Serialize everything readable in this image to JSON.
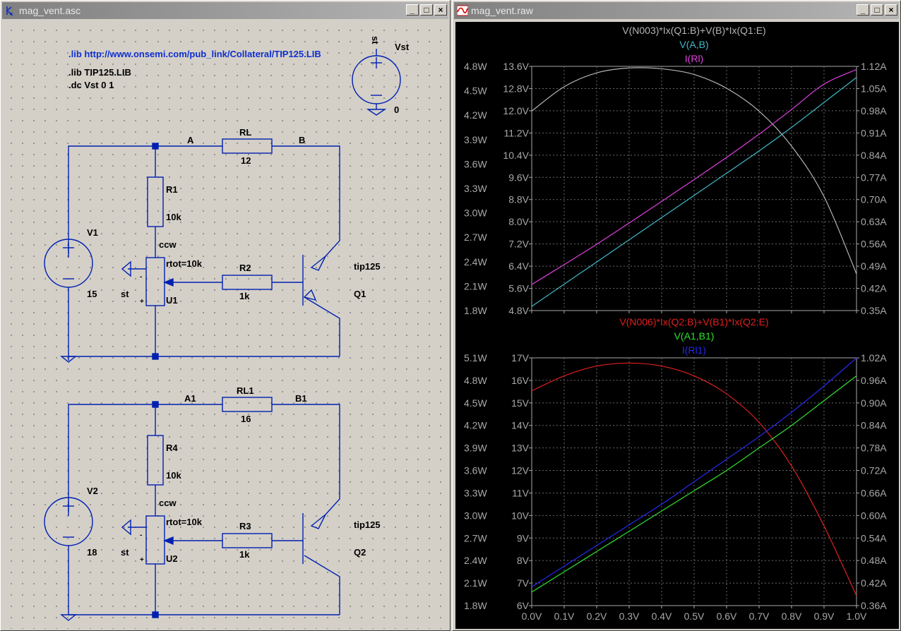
{
  "schematic": {
    "title": "mag_vent.asc",
    "directives": {
      "lib_url": ".lib http://www.onsemi.com/pub_link/Collateral/TIP125.LIB",
      "lib_file": ".lib TIP125.LIB",
      "dc": ".dc Vst 0 1"
    },
    "vst": {
      "name": "Vst",
      "net": "st",
      "ground": "0"
    },
    "circuit1": {
      "node_a": "A",
      "node_b": "B",
      "rl_name": "RL",
      "rl_value": "12",
      "r1_name": "R1",
      "r1_value": "10k",
      "ccw": "ccw",
      "rtot": "rtot=10k",
      "r2_name": "R2",
      "r2_value": "1k",
      "v_name": "V1",
      "v_value": "15",
      "st": "st",
      "u_name": "U1",
      "q_model": "tip125",
      "q_name": "Q1"
    },
    "circuit2": {
      "node_a": "A1",
      "node_b": "B1",
      "rl_name": "RL1",
      "rl_value": "16",
      "r1_name": "R4",
      "r1_value": "10k",
      "ccw": "ccw",
      "rtot": "rtot=10k",
      "r2_name": "R3",
      "r2_value": "1k",
      "v_name": "V2",
      "v_value": "18",
      "st": "st",
      "u_name": "U2",
      "q_model": "tip125",
      "q_name": "Q2"
    }
  },
  "waveform": {
    "title": "mag_vent.raw",
    "x_ticks": [
      "0.0V",
      "0.1V",
      "0.2V",
      "0.3V",
      "0.4V",
      "0.5V",
      "0.6V",
      "0.7V",
      "0.8V",
      "0.9V",
      "1.0V"
    ],
    "panes": [
      {
        "traces": [
          {
            "label": "V(N003)*Ix(Q1:B)+V(B)*Ix(Q1:E)",
            "color": "#b4b4b4"
          },
          {
            "label": "V(A,B)",
            "color": "#3fb8c8"
          },
          {
            "label": "I(Rl)",
            "color": "#e040e0"
          }
        ],
        "axis_w": [
          "4.8W",
          "4.5W",
          "4.2W",
          "3.9W",
          "3.6W",
          "3.3W",
          "3.0W",
          "2.7W",
          "2.4W",
          "2.1W",
          "1.8W"
        ],
        "axis_v": [
          "13.6V",
          "12.8V",
          "12.0V",
          "11.2V",
          "10.4V",
          "9.6V",
          "8.8V",
          "8.0V",
          "7.2V",
          "6.4V",
          "5.6V",
          "4.8V"
        ],
        "axis_a": [
          "1.12A",
          "1.05A",
          "0.98A",
          "0.91A",
          "0.84A",
          "0.77A",
          "0.70A",
          "0.63A",
          "0.56A",
          "0.49A",
          "0.42A",
          "0.35A"
        ]
      },
      {
        "traces": [
          {
            "label": "V(N006)*Ix(Q2:B)+V(B1)*Ix(Q2:E)",
            "color": "#e02020"
          },
          {
            "label": "V(A1,B1)",
            "color": "#30e030"
          },
          {
            "label": "I(Rl1)",
            "color": "#2828f0"
          }
        ],
        "axis_w": [
          "5.1W",
          "4.8W",
          "4.5W",
          "4.2W",
          "3.9W",
          "3.6W",
          "3.3W",
          "3.0W",
          "2.7W",
          "2.4W",
          "2.1W",
          "1.8W"
        ],
        "axis_v": [
          "17V",
          "16V",
          "15V",
          "14V",
          "13V",
          "12V",
          "11V",
          "10V",
          "9V",
          "8V",
          "7V",
          "6V"
        ],
        "axis_a": [
          "1.02A",
          "0.96A",
          "0.90A",
          "0.84A",
          "0.78A",
          "0.72A",
          "0.66A",
          "0.60A",
          "0.54A",
          "0.48A",
          "0.42A",
          "0.36A"
        ]
      }
    ]
  },
  "chart_data": [
    {
      "type": "line",
      "x": [
        0.0,
        0.1,
        0.2,
        0.3,
        0.4,
        0.5,
        0.6,
        0.7,
        0.8,
        0.9,
        1.0
      ],
      "xlim": [
        0,
        1
      ],
      "series": [
        {
          "name": "V(N003)*Ix(Q1:B)+V(B)*Ix(Q1:E)",
          "axis": "left",
          "unit": "W",
          "ylim": [
            1.8,
            4.8
          ],
          "values": [
            4.25,
            4.55,
            4.72,
            4.78,
            4.77,
            4.7,
            4.53,
            4.25,
            3.82,
            3.2,
            2.25
          ]
        },
        {
          "name": "V(A,B)",
          "axis": "middle",
          "unit": "V",
          "ylim": [
            4.8,
            13.6
          ],
          "values": [
            4.95,
            5.75,
            6.55,
            7.35,
            8.15,
            8.95,
            9.75,
            10.55,
            11.4,
            12.3,
            13.2
          ]
        },
        {
          "name": "I(Rl)",
          "axis": "right",
          "unit": "A",
          "ylim": [
            0.35,
            1.12
          ],
          "values": [
            0.432,
            0.495,
            0.559,
            0.626,
            0.694,
            0.763,
            0.833,
            0.906,
            0.984,
            1.064,
            1.11
          ]
        }
      ]
    },
    {
      "type": "line",
      "x": [
        0.0,
        0.1,
        0.2,
        0.3,
        0.4,
        0.5,
        0.6,
        0.7,
        0.8,
        0.9,
        1.0
      ],
      "xlim": [
        0,
        1
      ],
      "series": [
        {
          "name": "V(N006)*Ix(Q2:B)+V(B1)*Ix(Q2:E)",
          "axis": "left",
          "unit": "W",
          "ylim": [
            1.8,
            5.1
          ],
          "values": [
            4.66,
            4.86,
            4.99,
            5.03,
            4.99,
            4.86,
            4.62,
            4.24,
            3.66,
            2.86,
            1.93
          ]
        },
        {
          "name": "V(A1,B1)",
          "axis": "middle",
          "unit": "V",
          "ylim": [
            6,
            17
          ],
          "values": [
            6.6,
            7.5,
            8.4,
            9.3,
            10.2,
            11.1,
            12.0,
            13.0,
            14.0,
            15.1,
            16.2
          ]
        },
        {
          "name": "I(Rl1)",
          "axis": "right",
          "unit": "A",
          "ylim": [
            0.36,
            1.02
          ],
          "values": [
            0.41,
            0.465,
            0.52,
            0.575,
            0.63,
            0.69,
            0.75,
            0.81,
            0.875,
            0.945,
            1.02
          ]
        }
      ]
    }
  ]
}
